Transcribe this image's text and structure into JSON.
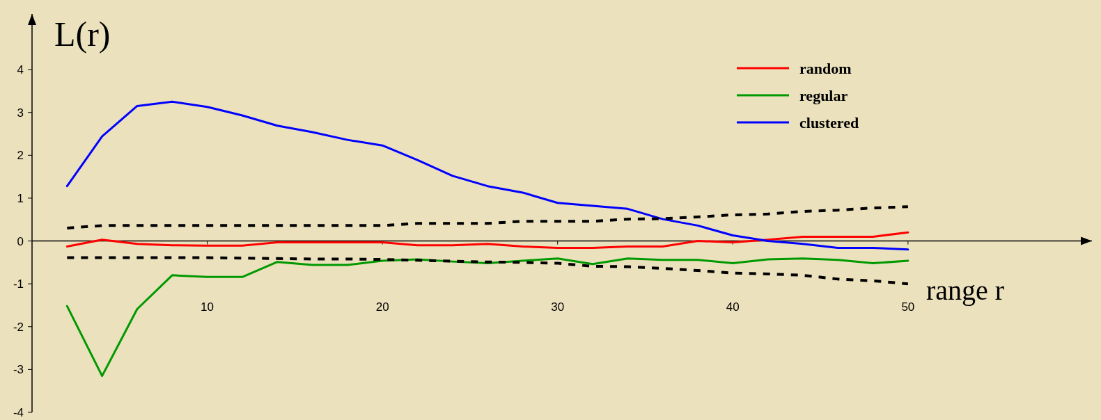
{
  "chart_data": {
    "type": "line",
    "xlabel": "range r",
    "ylabel": "L(r)",
    "xlim": [
      0,
      60.5
    ],
    "ylim": [
      -4,
      5.3
    ],
    "xticks": [
      10,
      20,
      30,
      40,
      50
    ],
    "yticks": [
      -4,
      -3,
      -2,
      -1,
      0,
      1,
      2,
      3,
      4
    ],
    "legend": "top right",
    "x": [
      2,
      4,
      6,
      8,
      10,
      12,
      14,
      16,
      18,
      20,
      22,
      24,
      26,
      28,
      30,
      32,
      34,
      36,
      38,
      40,
      42,
      44,
      46,
      48,
      50
    ],
    "series": [
      {
        "name": "random",
        "color": "#ff0000",
        "values": [
          -0.13,
          0.03,
          -0.07,
          -0.1,
          -0.11,
          -0.11,
          -0.03,
          -0.03,
          -0.03,
          -0.03,
          -0.1,
          -0.1,
          -0.07,
          -0.13,
          -0.16,
          -0.16,
          -0.13,
          -0.13,
          0,
          -0.03,
          0.03,
          0.1,
          0.1,
          0.1,
          0.2
        ]
      },
      {
        "name": "regular",
        "color": "#009900",
        "values": [
          -1.52,
          -3.15,
          -1.59,
          -0.8,
          -0.84,
          -0.84,
          -0.49,
          -0.56,
          -0.56,
          -0.46,
          -0.43,
          -0.48,
          -0.52,
          -0.46,
          -0.41,
          -0.54,
          -0.41,
          -0.44,
          -0.44,
          -0.52,
          -0.43,
          -0.41,
          -0.44,
          -0.52,
          -0.46
        ]
      },
      {
        "name": "clustered",
        "color": "#0000ff",
        "values": [
          1.28,
          2.44,
          3.15,
          3.25,
          3.13,
          2.93,
          2.69,
          2.54,
          2.36,
          2.23,
          1.89,
          1.52,
          1.28,
          1.13,
          0.89,
          0.82,
          0.75,
          0.51,
          0.36,
          0.13,
          0,
          -0.07,
          -0.16,
          -0.16,
          -0.2
        ]
      },
      {
        "color": "#000000",
        "line_style": "dotted",
        "values": [
          0.3,
          0.36,
          0.36,
          0.36,
          0.36,
          0.36,
          0.36,
          0.36,
          0.36,
          0.36,
          0.41,
          0.41,
          0.41,
          0.46,
          0.46,
          0.46,
          0.51,
          0.52,
          0.56,
          0.61,
          0.63,
          0.69,
          0.72,
          0.77,
          0.8
        ]
      },
      {
        "color": "#000000",
        "line_style": "dotted",
        "values": [
          -0.39,
          -0.39,
          -0.39,
          -0.39,
          -0.39,
          -0.4,
          -0.41,
          -0.42,
          -0.42,
          -0.43,
          -0.45,
          -0.47,
          -0.49,
          -0.5,
          -0.52,
          -0.59,
          -0.6,
          -0.64,
          -0.69,
          -0.75,
          -0.77,
          -0.8,
          -0.89,
          -0.93,
          -1.0
        ]
      }
    ]
  }
}
